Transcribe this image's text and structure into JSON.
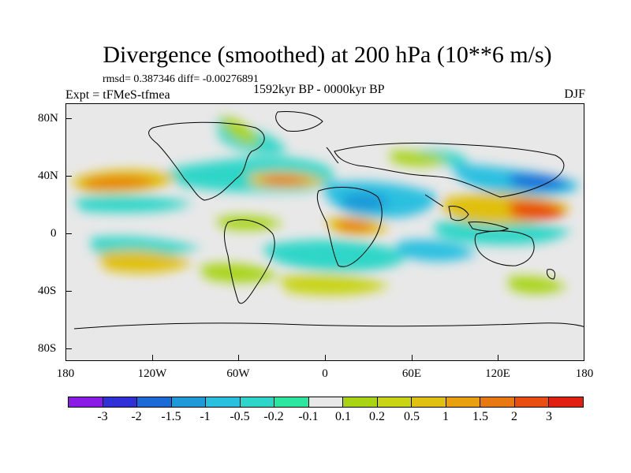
{
  "title": "Divergence (smoothed) at 200 hPa (10**6 m/s)",
  "stats": "rmsd= 0.387346 diff= -0.00276891",
  "experiment": "Expt = tFMeS-tfmea",
  "period": "1592kyr BP - 0000kyr BP",
  "season": "DJF",
  "y_axis": {
    "labels": [
      "80N",
      "40N",
      "0",
      "40S",
      "80S"
    ]
  },
  "x_axis": {
    "labels": [
      "180",
      "120W",
      "60W",
      "0",
      "60E",
      "120E",
      "180"
    ]
  },
  "colorbar": {
    "colors": [
      "#8a1ae6",
      "#3030d8",
      "#1c6ad8",
      "#1e9ad8",
      "#29c0e0",
      "#2dd6c8",
      "#2ce6a0",
      "#e8e8e8",
      "#a8d414",
      "#c8d414",
      "#e0c010",
      "#e8a010",
      "#e87810",
      "#e84e10",
      "#e02010"
    ],
    "labels": [
      "-3",
      "-2",
      "-1.5",
      "-1",
      "-0.5",
      "-0.2",
      "-0.1",
      "0.1",
      "0.2",
      "0.5",
      "1",
      "1.5",
      "2",
      "3"
    ]
  }
}
